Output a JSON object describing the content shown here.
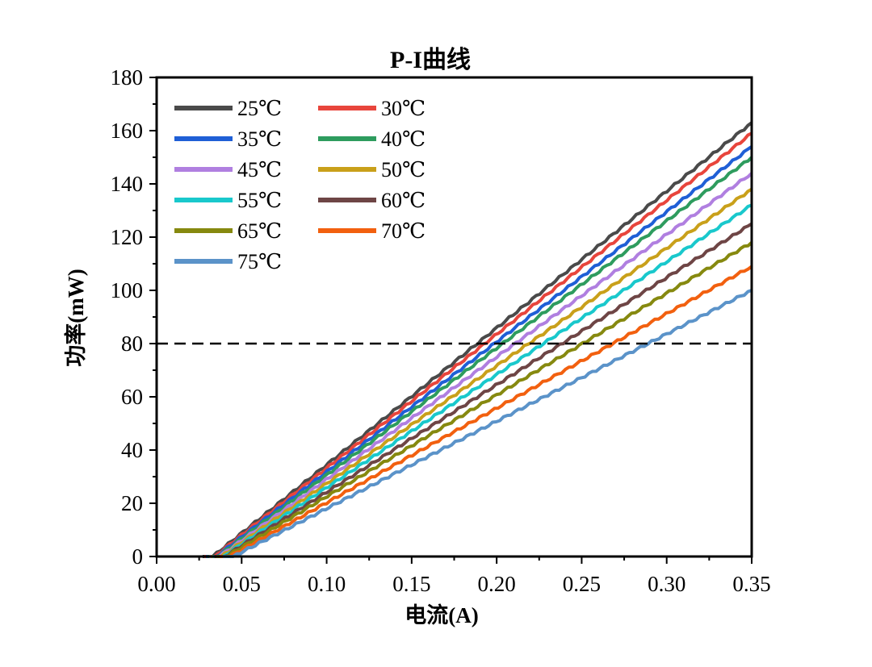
{
  "chart_data": {
    "type": "line",
    "title": "P-I曲线",
    "xlabel": "电流(A)",
    "ylabel": "功率(mW)",
    "xlim": [
      0,
      0.35
    ],
    "ylim": [
      0,
      180
    ],
    "x_ticks": [
      "0.00",
      "0.05",
      "0.10",
      "0.15",
      "0.20",
      "0.25",
      "0.30",
      "0.35"
    ],
    "y_ticks": [
      "0",
      "20",
      "40",
      "60",
      "80",
      "100",
      "120",
      "140",
      "160",
      "180"
    ],
    "grid": false,
    "legend_position": "top-left",
    "reference_line": {
      "y": 80,
      "style": "dashed",
      "color": "#000000"
    },
    "series": [
      {
        "name": "25℃",
        "color": "#4a4a4a",
        "threshold_a": 0.033,
        "x": [
          0.033,
          0.35
        ],
        "y": [
          0,
          163
        ]
      },
      {
        "name": "30℃",
        "color": "#e8453c",
        "threshold_a": 0.034,
        "x": [
          0.034,
          0.35
        ],
        "y": [
          0,
          159
        ]
      },
      {
        "name": "35℃",
        "color": "#1f5fd6",
        "threshold_a": 0.035,
        "x": [
          0.035,
          0.35
        ],
        "y": [
          0,
          154
        ]
      },
      {
        "name": "40℃",
        "color": "#2e9c5e",
        "threshold_a": 0.036,
        "x": [
          0.036,
          0.35
        ],
        "y": [
          0,
          150
        ]
      },
      {
        "name": "45℃",
        "color": "#b07fe0",
        "threshold_a": 0.037,
        "x": [
          0.037,
          0.35
        ],
        "y": [
          0,
          144
        ]
      },
      {
        "name": "50℃",
        "color": "#c9a01a",
        "threshold_a": 0.038,
        "x": [
          0.038,
          0.35
        ],
        "y": [
          0,
          138
        ]
      },
      {
        "name": "55℃",
        "color": "#19c8cc",
        "threshold_a": 0.039,
        "x": [
          0.039,
          0.35
        ],
        "y": [
          0,
          132
        ]
      },
      {
        "name": "60℃",
        "color": "#6e4545",
        "threshold_a": 0.04,
        "x": [
          0.04,
          0.35
        ],
        "y": [
          0,
          125
        ]
      },
      {
        "name": "65℃",
        "color": "#86890f",
        "threshold_a": 0.041,
        "x": [
          0.041,
          0.35
        ],
        "y": [
          0,
          118
        ]
      },
      {
        "name": "70℃",
        "color": "#f2600f",
        "threshold_a": 0.043,
        "x": [
          0.043,
          0.35
        ],
        "y": [
          0,
          109
        ]
      },
      {
        "name": "75℃",
        "color": "#5b93c9",
        "threshold_a": 0.045,
        "x": [
          0.045,
          0.35
        ],
        "y": [
          0,
          100
        ]
      }
    ]
  }
}
